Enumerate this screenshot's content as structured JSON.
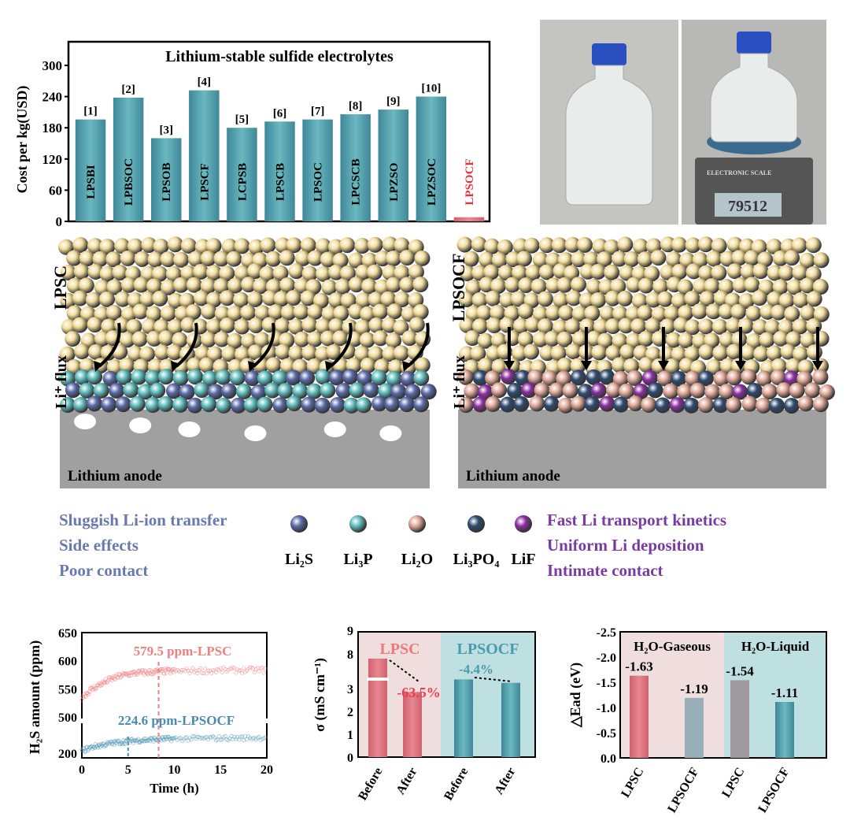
{
  "colors": {
    "teal": "#4f9aa8",
    "red": "#e8323c",
    "pink": "#f0dede",
    "tealbg": "#bfe0e0",
    "li2s": "#5a6aa8",
    "li3p": "#5fbcbc",
    "li2o": "#e0a898",
    "li3po4": "#2e4a70",
    "lif": "#8a2ea0",
    "yellow": "#f2dc9a",
    "anode": "#a0a0a0",
    "leftText": "#6a78b0",
    "rightText": "#7a3aa6"
  },
  "photos": {
    "scale_brand": "ELECTRONIC SCALE",
    "scale_reading": "79512"
  },
  "schematic": {
    "left": {
      "layer_label": "LPSC",
      "flux_label": "Li⁺ flux",
      "anode_label": "Lithium anode"
    },
    "right": {
      "layer_label": "LPSOCF",
      "flux_label": "Li⁺ flux",
      "anode_label": "Lithium anode"
    },
    "left_notes": [
      "Sluggish Li-ion transfer",
      "Side effects",
      "Poor contact"
    ],
    "right_notes": [
      "Fast Li transport kinetics",
      "Uniform Li deposition",
      "Intimate contact"
    ],
    "legend": [
      {
        "label": "Li₂S",
        "color": "#5a6aa8"
      },
      {
        "label": "Li₃P",
        "color": "#5fbcbc"
      },
      {
        "label": "Li₂O",
        "color": "#e0a898"
      },
      {
        "label": "Li₃PO₄",
        "color": "#2e4a70"
      },
      {
        "label": "LiF",
        "color": "#8a2ea0"
      }
    ]
  },
  "chart_data": [
    {
      "type": "bar",
      "title": "Lithium-stable sulfide electrolytes",
      "ylabel": "Cost per kg(USD)",
      "xlabel": "",
      "ylim": [
        0,
        340
      ],
      "yticks": [
        0,
        60,
        120,
        180,
        240,
        300
      ],
      "categories": [
        "LPSBI",
        "LPBSOC",
        "LPSOB",
        "LPSCF",
        "LCPSB",
        "LPSCB",
        "LPSOC",
        "LPCSCB",
        "LPZSO",
        "LPZSOC",
        "LPSOCF"
      ],
      "refs": [
        "[1]",
        "[2]",
        "[3]",
        "[4]",
        "[5]",
        "[6]",
        "[7]",
        "[8]",
        "[9]",
        "[10]",
        ""
      ],
      "values": [
        196,
        238,
        160,
        252,
        180,
        192,
        196,
        206,
        215,
        240,
        8
      ],
      "highlight": "LPSOCF"
    },
    {
      "type": "line",
      "xlabel": "Time (h)",
      "ylabel": "H₂S amount (ppm)",
      "xlim": [
        0,
        20
      ],
      "xticks": [
        0,
        5,
        10,
        15,
        20
      ],
      "yticks": [
        200,
        500,
        550,
        600,
        650
      ],
      "axis_break": "between 260 and 490",
      "series": [
        {
          "name": "LPSC",
          "x": [
            0,
            1,
            2,
            3,
            4,
            5,
            6,
            7,
            8,
            9,
            10,
            12,
            14,
            16,
            18,
            20
          ],
          "y": [
            535,
            548,
            558,
            566,
            572,
            576,
            578,
            579,
            580,
            581,
            581,
            582,
            582,
            583,
            583,
            583
          ]
        },
        {
          "name": "LPSOCF",
          "x": [
            0,
            1,
            2,
            3,
            4,
            5,
            6,
            7,
            8,
            9,
            10,
            12,
            14,
            16,
            18,
            20
          ],
          "y": [
            205,
            212,
            217,
            220,
            223,
            225,
            227,
            228,
            229,
            230,
            230,
            231,
            231,
            232,
            232,
            233
          ]
        }
      ],
      "annotations": [
        {
          "text": "579.5 ppm-LPSC",
          "x": 8.3
        },
        {
          "text": "224.6 ppm-LPSOCF",
          "x": 5
        }
      ]
    },
    {
      "type": "bar",
      "ylabel": "σ (mS cm⁻¹)",
      "yticks": [
        0,
        1,
        2,
        3,
        8,
        9
      ],
      "axis_break": "between 3 and 7",
      "groups": [
        "LPSC",
        "LPSOCF"
      ],
      "categories": [
        "Before",
        "After",
        "Before",
        "After"
      ],
      "values": [
        7.8,
        2.85,
        3.4,
        3.25
      ],
      "changes": [
        "-63.5%",
        "-4.4%"
      ]
    },
    {
      "type": "bar",
      "ylabel": "△Ead (eV)",
      "ylim": [
        0,
        -2.5
      ],
      "yticks": [
        0.0,
        -0.5,
        -1.0,
        -1.5,
        -2.0,
        -2.5
      ],
      "groups": [
        "H₂O-Gaseous",
        "H₂O-Liquid"
      ],
      "categories": [
        "LPSC",
        "LPSOCF",
        "LPSC",
        "LPSOCF"
      ],
      "values": [
        -1.63,
        -1.19,
        -1.54,
        -1.11
      ],
      "labels": [
        "-1.63",
        "-1.19",
        "-1.54",
        "-1.11"
      ]
    }
  ]
}
